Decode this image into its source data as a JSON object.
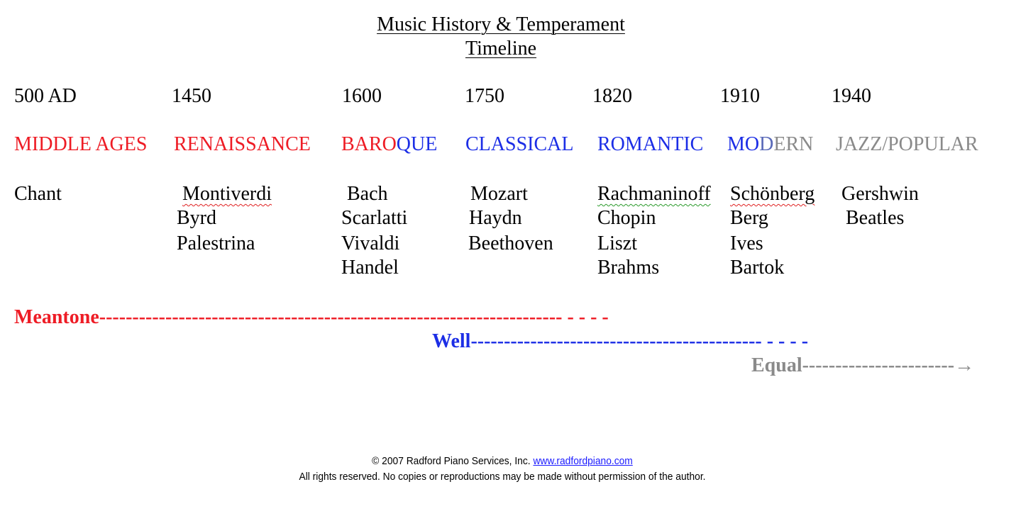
{
  "title": {
    "line1": "Music History & Temperament",
    "line2": "Timeline"
  },
  "years": [
    "500 AD",
    "1450",
    "1600",
    "1750",
    "1820",
    "1910",
    "1940"
  ],
  "eras": {
    "middle_ages": "MIDDLE AGES",
    "renaissance": "RENAISSANCE",
    "baroque_a": "BARO",
    "baroque_b": "QUE",
    "classical": "CLASSICAL",
    "romantic": "ROMANTIC",
    "modern_a": "MO",
    "modern_b": "D",
    "modern_c": "ERN",
    "jazz": "JAZZ/POPULAR"
  },
  "composers": {
    "middle_ages": [
      "Chant"
    ],
    "renaissance": [
      "Montiverdi",
      "Byrd",
      "Palestrina"
    ],
    "baroque": [
      "Bach",
      "Scarlatti",
      "Vivaldi",
      "Handel"
    ],
    "classical": [
      "Mozart",
      "Haydn",
      "Beethoven"
    ],
    "romantic": [
      "Rachmaninoff",
      "Chopin",
      "Liszt",
      "Brahms"
    ],
    "modern": [
      "Schönberg",
      "Berg",
      "Ives",
      "Bartok"
    ],
    "jazz": [
      "Gershwin",
      "Beatles"
    ]
  },
  "temperaments": {
    "meantone_label": "Meantone",
    "meantone_line": "---------------------------------------------------------------------- - - - -",
    "well_label": "Well",
    "well_line": "-------------------------------------------- - - - -",
    "equal_label": "Equal",
    "equal_line": "-----------------------",
    "equal_arrow": "→"
  },
  "footer": {
    "copyright": "© 2007 Radford Piano Services, Inc.",
    "link": "www.radfordpiano.com",
    "rights": "All rights reserved. No copies or reproductions may be made without permission of the author."
  },
  "colors": {
    "red": "#ee1c25",
    "blue": "#1c2ee6",
    "gray": "#8a8a8a",
    "black": "#000000"
  }
}
